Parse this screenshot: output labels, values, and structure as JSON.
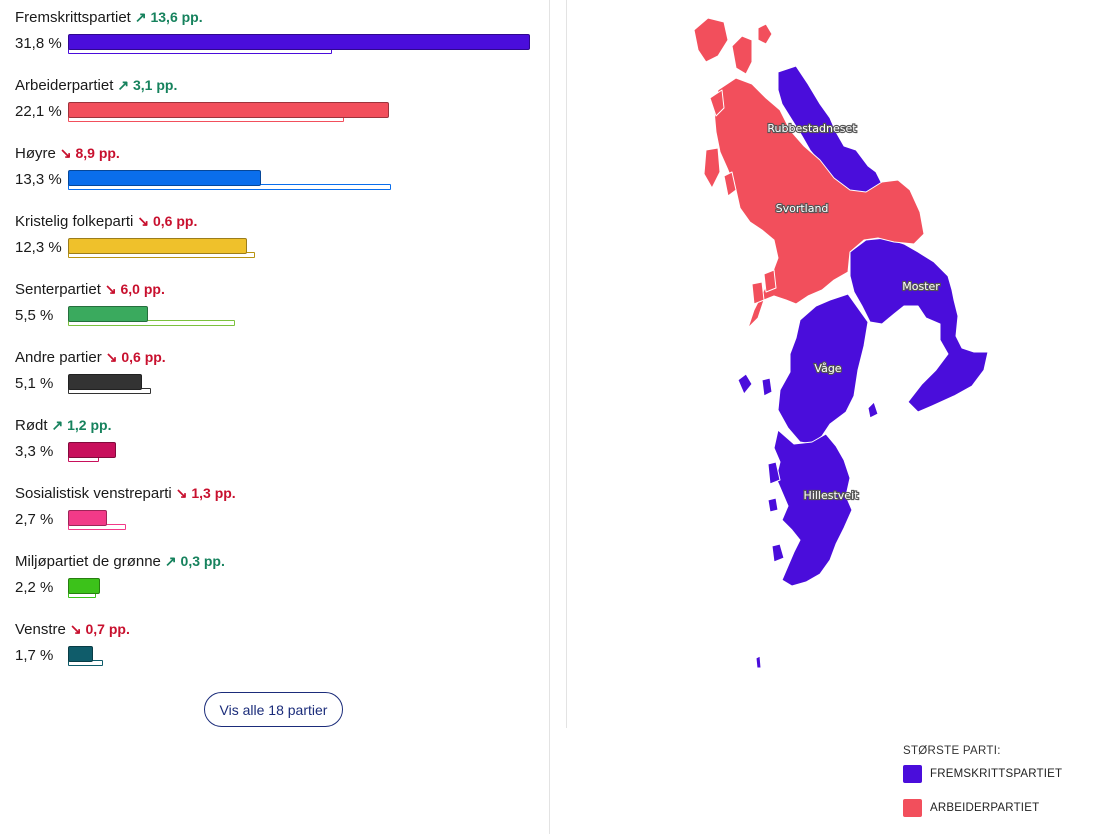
{
  "chart_data": [
    {
      "type": "bar",
      "categories": [
        "Fremskrittspartiet",
        "Arbeiderpartiet",
        "Høyre",
        "Kristelig folkeparti",
        "Senterpartiet",
        "Andre partier",
        "Rødt",
        "Sosialistisk venstreparti",
        "Miljøpartiet de grønne",
        "Venstre"
      ],
      "series": [
        {
          "values": [
            31.8,
            22.1,
            13.3,
            12.3,
            5.5,
            5.1,
            3.3,
            2.7,
            2.2,
            1.7
          ]
        },
        {
          "values": [
            18.2,
            19.0,
            22.2,
            12.9,
            11.5,
            5.7,
            2.1,
            4.0,
            1.9,
            2.4
          ]
        }
      ],
      "percent_labels": [
        "31,8 %",
        "22,1 %",
        "13,3 %",
        "12,3 %",
        "5,5 %",
        "5,1 %",
        "3,3 %",
        "2,7 %",
        "2,2 %",
        "1,7 %"
      ],
      "changes": [
        {
          "text": "13,6 pp.",
          "direction": "up"
        },
        {
          "text": "3,1 pp.",
          "direction": "up"
        },
        {
          "text": "8,9 pp.",
          "direction": "down"
        },
        {
          "text": "0,6 pp.",
          "direction": "down"
        },
        {
          "text": "6,0 pp.",
          "direction": "down"
        },
        {
          "text": "0,6 pp.",
          "direction": "down"
        },
        {
          "text": "1,2 pp.",
          "direction": "up"
        },
        {
          "text": "1,3 pp.",
          "direction": "down"
        },
        {
          "text": "0,3 pp.",
          "direction": "up"
        },
        {
          "text": "0,7 pp.",
          "direction": "down"
        }
      ],
      "colors": [
        "#4a0ddb",
        "#f24f5c",
        "#0a6eec",
        "#efc12b",
        "#3aaa5e",
        "#333333",
        "#c8105c",
        "#f23a88",
        "#3cc21a",
        "#0f5c6a"
      ],
      "previous_colors": [
        "#4a0ddb",
        "#f24f5c",
        "#0a6eec",
        "#b89412",
        "#7cc23e",
        "#333333",
        "#c8105c",
        "#f23a88",
        "#3cc21a",
        "#0f5c6a"
      ],
      "xlim": [
        0,
        32
      ]
    },
    {
      "type": "map",
      "districts": [
        "Rubbestadneset",
        "Svortland",
        "Moster",
        "Våge",
        "Hillestveit"
      ],
      "largest_party": [
        "FREMSKRITTSPARTIET",
        "ARBEIDERPARTIET",
        "FREMSKRITTSPARTIET",
        "FREMSKRITTSPARTIET",
        "FREMSKRITTSPARTIET"
      ]
    }
  ],
  "show_all_button": "Vis alle 18 partier",
  "change_arrows": {
    "up": "↗",
    "down": "↘"
  },
  "legend": {
    "title": "STØRSTE PARTI:",
    "items": [
      {
        "label": "FREMSKRITTSPARTIET",
        "color": "#4a0ddb"
      },
      {
        "label": "ARBEIDERPARTIET",
        "color": "#f24f5c"
      }
    ]
  }
}
